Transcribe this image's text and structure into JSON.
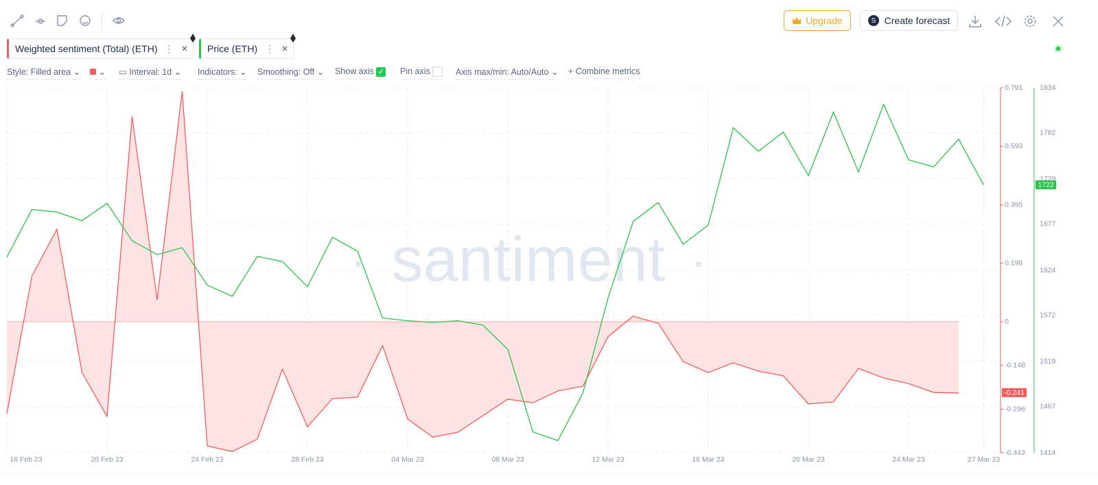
{
  "toolbar": {
    "upgrade": "Upgrade",
    "create_forecast": "Create forecast"
  },
  "settings": {
    "style": "Style: Filled area",
    "interval": "Interval: 1d",
    "indicators": "Indicators:",
    "smoothing": "Smoothing: Off",
    "show_axis": "Show axis",
    "pin_axis": "Pin axis",
    "axis_maxmin": "Axis max/min: Auto/Auto",
    "combine": "Combine metrics"
  },
  "watermark": "santiment",
  "chart_data": {
    "type": "line",
    "categories": [
      "16 Feb 23",
      null,
      null,
      null,
      "20 Feb 23",
      null,
      null,
      null,
      "24 Feb 23",
      null,
      null,
      null,
      "28 Feb 23",
      null,
      null,
      null,
      "04 Mar 23",
      null,
      null,
      null,
      "08 Mar 23",
      null,
      null,
      null,
      "12 Mar 23",
      null,
      null,
      null,
      "16 Mar 23",
      null,
      null,
      null,
      "20 Mar 23",
      null,
      null,
      null,
      "24 Mar 23",
      null,
      null,
      "27 Mar 23"
    ],
    "series": [
      {
        "name": "Weighted sentiment (Total) (ETH)",
        "color": "#f25c5c",
        "fill": "#fde3e3",
        "style": "area",
        "axis": "y",
        "values": [
          -0.311,
          0.155,
          0.313,
          -0.172,
          -0.32,
          0.694,
          0.074,
          0.78,
          -0.42,
          -0.439,
          -0.397,
          -0.16,
          -0.355,
          -0.26,
          -0.255,
          -0.081,
          -0.329,
          -0.39,
          -0.374,
          -0.318,
          -0.262,
          -0.274,
          -0.234,
          -0.218,
          -0.051,
          0.019,
          -0.005,
          -0.135,
          -0.172,
          -0.139,
          -0.167,
          -0.183,
          -0.278,
          -0.271,
          -0.158,
          -0.19,
          -0.209,
          -0.239,
          -0.241,
          null
        ]
      },
      {
        "name": "Price (ETH)",
        "color": "#2bc24a",
        "style": "line",
        "axis": "y2",
        "values": [
          1639,
          1694,
          1691,
          1681,
          1701,
          1658,
          1642,
          1650,
          1607,
          1594,
          1640,
          1634,
          1605,
          1662,
          1646,
          1569,
          1566,
          1564,
          1566,
          1561,
          1533,
          1438,
          1428,
          1483,
          1592,
          1680,
          1702,
          1654,
          1676,
          1788,
          1761,
          1783,
          1733,
          1806,
          1737,
          1815,
          1751,
          1743,
          1775,
          1722
        ]
      }
    ],
    "ylim": [
      -0.443,
      0.791
    ],
    "yticks": [
      0.791,
      0.593,
      0.395,
      0.198,
      0,
      -0.148,
      -0.296,
      -0.443
    ],
    "y2lim": [
      1414,
      1834
    ],
    "y2ticks": [
      1834,
      1782,
      1729,
      1677,
      1624,
      1572,
      1519,
      1467,
      1414
    ],
    "grid": true
  }
}
